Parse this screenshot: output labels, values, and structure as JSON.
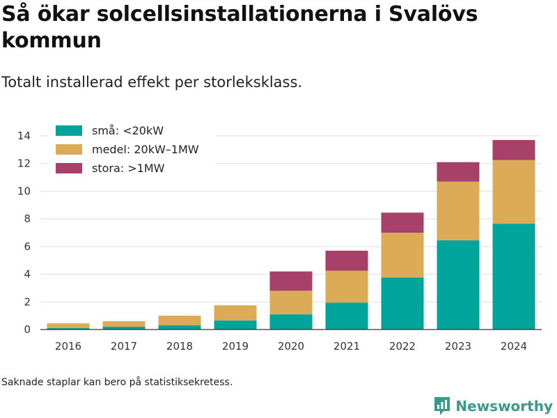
{
  "title": "Så ökar solcellsinstallationerna i Svalövs kommun",
  "subtitle": "Totalt installerad effekt per storleksklass.",
  "footnote": "Saknade staplar kan bero på statistiksekretess.",
  "brand": {
    "name": "Newsworthy",
    "color": "#3a9a8a"
  },
  "chart_data": {
    "type": "bar",
    "stacked": true,
    "title": "Så ökar solcellsinstallationerna i Svalövs kommun",
    "subtitle": "Totalt installerad effekt per storleksklass.",
    "xlabel": "",
    "ylabel": "",
    "categories": [
      "2016",
      "2017",
      "2018",
      "2019",
      "2020",
      "2021",
      "2022",
      "2023",
      "2024"
    ],
    "series": [
      {
        "name": "små: <20kW",
        "color": "#00a49a",
        "values": [
          0.1,
          0.2,
          0.3,
          0.65,
          1.1,
          1.95,
          3.75,
          6.45,
          7.65
        ]
      },
      {
        "name": "medel: 20kW–1MW",
        "color": "#dbab57",
        "values": [
          0.35,
          0.4,
          0.7,
          1.1,
          1.7,
          2.3,
          3.25,
          4.25,
          4.6
        ]
      },
      {
        "name": "stora: >1MW",
        "color": "#a8416a",
        "values": [
          0,
          0,
          0,
          0,
          1.4,
          1.45,
          1.45,
          1.4,
          1.45
        ]
      }
    ],
    "ylim": [
      0,
      14
    ],
    "yticks": [
      0,
      2,
      4,
      6,
      8,
      10,
      12,
      14
    ],
    "grid": true,
    "legend_position": "top-left"
  }
}
